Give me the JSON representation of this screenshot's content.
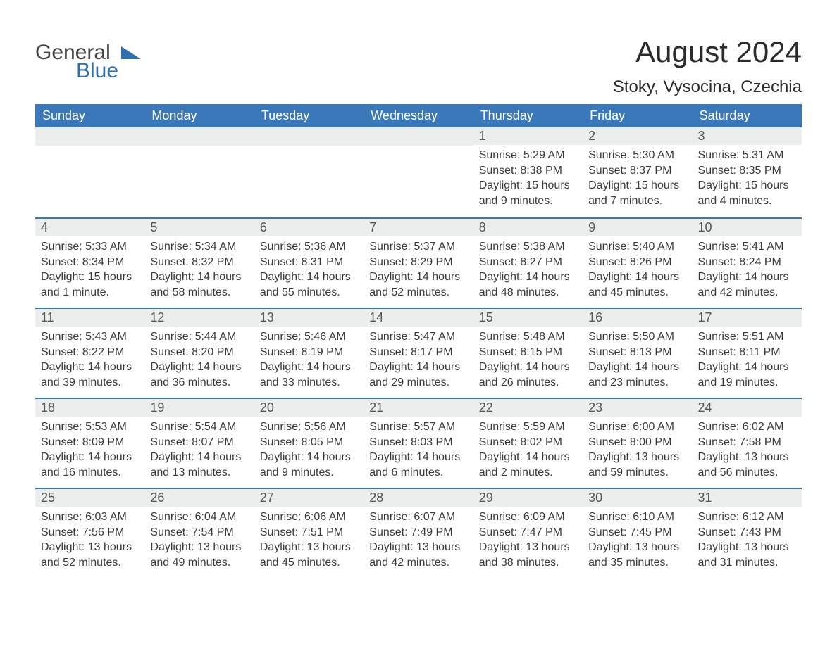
{
  "logo": {
    "word1": "General",
    "word2": "Blue",
    "text_color": "#444444",
    "accent_color": "#2f6fb0"
  },
  "title": "August 2024",
  "subtitle": "Stoky, Vysocina, Czechia",
  "colors": {
    "header_bg": "#3a78b9",
    "header_text": "#ffffff",
    "daynum_bg": "#eceded",
    "daynum_text": "#565656",
    "body_text": "#3a3a3a",
    "rule": "#3a78b9",
    "page_bg": "#ffffff"
  },
  "weekdays": [
    "Sunday",
    "Monday",
    "Tuesday",
    "Wednesday",
    "Thursday",
    "Friday",
    "Saturday"
  ],
  "weeks": [
    [
      {
        "blank": true
      },
      {
        "blank": true
      },
      {
        "blank": true
      },
      {
        "blank": true
      },
      {
        "n": "1",
        "sunrise": "5:29 AM",
        "sunset": "8:38 PM",
        "daylight": "15 hours and 9 minutes."
      },
      {
        "n": "2",
        "sunrise": "5:30 AM",
        "sunset": "8:37 PM",
        "daylight": "15 hours and 7 minutes."
      },
      {
        "n": "3",
        "sunrise": "5:31 AM",
        "sunset": "8:35 PM",
        "daylight": "15 hours and 4 minutes."
      }
    ],
    [
      {
        "n": "4",
        "sunrise": "5:33 AM",
        "sunset": "8:34 PM",
        "daylight": "15 hours and 1 minute."
      },
      {
        "n": "5",
        "sunrise": "5:34 AM",
        "sunset": "8:32 PM",
        "daylight": "14 hours and 58 minutes."
      },
      {
        "n": "6",
        "sunrise": "5:36 AM",
        "sunset": "8:31 PM",
        "daylight": "14 hours and 55 minutes."
      },
      {
        "n": "7",
        "sunrise": "5:37 AM",
        "sunset": "8:29 PM",
        "daylight": "14 hours and 52 minutes."
      },
      {
        "n": "8",
        "sunrise": "5:38 AM",
        "sunset": "8:27 PM",
        "daylight": "14 hours and 48 minutes."
      },
      {
        "n": "9",
        "sunrise": "5:40 AM",
        "sunset": "8:26 PM",
        "daylight": "14 hours and 45 minutes."
      },
      {
        "n": "10",
        "sunrise": "5:41 AM",
        "sunset": "8:24 PM",
        "daylight": "14 hours and 42 minutes."
      }
    ],
    [
      {
        "n": "11",
        "sunrise": "5:43 AM",
        "sunset": "8:22 PM",
        "daylight": "14 hours and 39 minutes."
      },
      {
        "n": "12",
        "sunrise": "5:44 AM",
        "sunset": "8:20 PM",
        "daylight": "14 hours and 36 minutes."
      },
      {
        "n": "13",
        "sunrise": "5:46 AM",
        "sunset": "8:19 PM",
        "daylight": "14 hours and 33 minutes."
      },
      {
        "n": "14",
        "sunrise": "5:47 AM",
        "sunset": "8:17 PM",
        "daylight": "14 hours and 29 minutes."
      },
      {
        "n": "15",
        "sunrise": "5:48 AM",
        "sunset": "8:15 PM",
        "daylight": "14 hours and 26 minutes."
      },
      {
        "n": "16",
        "sunrise": "5:50 AM",
        "sunset": "8:13 PM",
        "daylight": "14 hours and 23 minutes."
      },
      {
        "n": "17",
        "sunrise": "5:51 AM",
        "sunset": "8:11 PM",
        "daylight": "14 hours and 19 minutes."
      }
    ],
    [
      {
        "n": "18",
        "sunrise": "5:53 AM",
        "sunset": "8:09 PM",
        "daylight": "14 hours and 16 minutes."
      },
      {
        "n": "19",
        "sunrise": "5:54 AM",
        "sunset": "8:07 PM",
        "daylight": "14 hours and 13 minutes."
      },
      {
        "n": "20",
        "sunrise": "5:56 AM",
        "sunset": "8:05 PM",
        "daylight": "14 hours and 9 minutes."
      },
      {
        "n": "21",
        "sunrise": "5:57 AM",
        "sunset": "8:03 PM",
        "daylight": "14 hours and 6 minutes."
      },
      {
        "n": "22",
        "sunrise": "5:59 AM",
        "sunset": "8:02 PM",
        "daylight": "14 hours and 2 minutes."
      },
      {
        "n": "23",
        "sunrise": "6:00 AM",
        "sunset": "8:00 PM",
        "daylight": "13 hours and 59 minutes."
      },
      {
        "n": "24",
        "sunrise": "6:02 AM",
        "sunset": "7:58 PM",
        "daylight": "13 hours and 56 minutes."
      }
    ],
    [
      {
        "n": "25",
        "sunrise": "6:03 AM",
        "sunset": "7:56 PM",
        "daylight": "13 hours and 52 minutes."
      },
      {
        "n": "26",
        "sunrise": "6:04 AM",
        "sunset": "7:54 PM",
        "daylight": "13 hours and 49 minutes."
      },
      {
        "n": "27",
        "sunrise": "6:06 AM",
        "sunset": "7:51 PM",
        "daylight": "13 hours and 45 minutes."
      },
      {
        "n": "28",
        "sunrise": "6:07 AM",
        "sunset": "7:49 PM",
        "daylight": "13 hours and 42 minutes."
      },
      {
        "n": "29",
        "sunrise": "6:09 AM",
        "sunset": "7:47 PM",
        "daylight": "13 hours and 38 minutes."
      },
      {
        "n": "30",
        "sunrise": "6:10 AM",
        "sunset": "7:45 PM",
        "daylight": "13 hours and 35 minutes."
      },
      {
        "n": "31",
        "sunrise": "6:12 AM",
        "sunset": "7:43 PM",
        "daylight": "13 hours and 31 minutes."
      }
    ]
  ],
  "labels": {
    "sunrise": "Sunrise:",
    "sunset": "Sunset:",
    "daylight": "Daylight:"
  }
}
